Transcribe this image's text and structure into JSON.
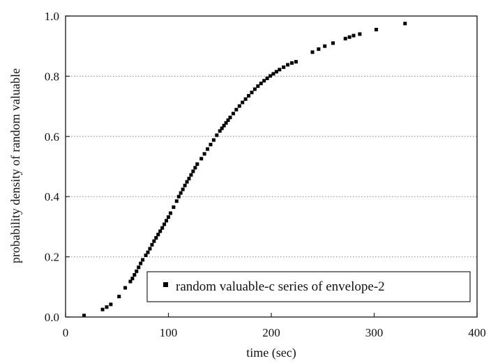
{
  "chart_data": {
    "type": "scatter",
    "title": "",
    "xlabel": "time (sec)",
    "ylabel": "probability density of random valuable",
    "xlim": [
      0,
      400
    ],
    "ylim": [
      0,
      1.0
    ],
    "x_ticks": [
      0,
      100,
      200,
      300,
      400
    ],
    "x_tick_labels": [
      "0",
      "100",
      "200",
      "300",
      "400"
    ],
    "y_ticks": [
      0,
      0.2,
      0.4,
      0.6,
      0.8,
      1.0
    ],
    "y_tick_labels": [
      "0.0",
      "0.2",
      "0.4",
      "0.6",
      "0.8",
      "1.0"
    ],
    "grid": "horizontal dotted lines",
    "legend": {
      "position": "bottom-right",
      "label": "random valuable-c series of envelope-2"
    },
    "marker_color": "#000000",
    "series": [
      {
        "name": "random valuable-c series of envelope-2",
        "x": [
          18,
          36,
          40,
          44,
          52,
          58,
          63,
          65,
          67,
          69,
          71,
          73,
          75,
          78,
          80,
          82,
          84,
          86,
          88,
          90,
          92,
          94,
          96,
          98,
          100,
          102,
          105,
          108,
          110,
          112,
          114,
          116,
          118,
          120,
          122,
          124,
          126,
          128,
          132,
          135,
          138,
          141,
          144,
          147,
          150,
          152,
          154,
          156,
          158,
          160,
          163,
          166,
          169,
          172,
          175,
          178,
          181,
          184,
          187,
          190,
          193,
          196,
          199,
          202,
          205,
          208,
          212,
          216,
          220,
          224,
          240,
          246,
          252,
          260,
          272,
          276,
          280,
          286,
          302,
          330
        ],
        "y": [
          0.005,
          0.025,
          0.033,
          0.042,
          0.068,
          0.097,
          0.118,
          0.128,
          0.14,
          0.152,
          0.165,
          0.178,
          0.19,
          0.205,
          0.215,
          0.227,
          0.24,
          0.252,
          0.263,
          0.274,
          0.285,
          0.296,
          0.308,
          0.32,
          0.332,
          0.345,
          0.365,
          0.385,
          0.4,
          0.412,
          0.424,
          0.437,
          0.449,
          0.46,
          0.472,
          0.484,
          0.496,
          0.508,
          0.526,
          0.542,
          0.558,
          0.573,
          0.588,
          0.604,
          0.618,
          0.627,
          0.636,
          0.645,
          0.654,
          0.663,
          0.676,
          0.689,
          0.701,
          0.713,
          0.724,
          0.735,
          0.746,
          0.757,
          0.767,
          0.776,
          0.785,
          0.793,
          0.801,
          0.808,
          0.815,
          0.822,
          0.83,
          0.838,
          0.844,
          0.848,
          0.88,
          0.89,
          0.9,
          0.91,
          0.925,
          0.93,
          0.935,
          0.94,
          0.955,
          0.975
        ]
      }
    ]
  }
}
